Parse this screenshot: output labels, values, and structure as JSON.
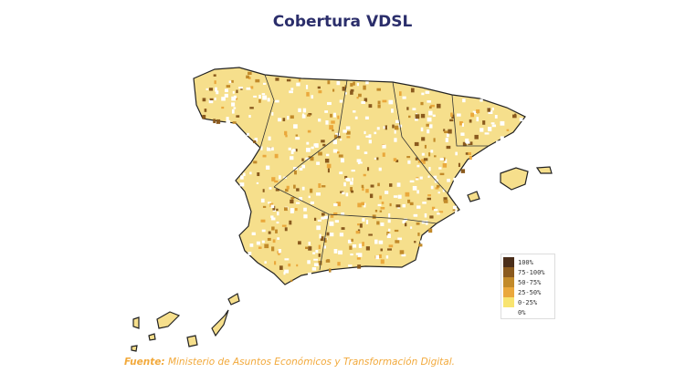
{
  "title": "Cobertura VDSL",
  "legend": [
    {
      "label": "100%",
      "color": "#4a2e1a"
    },
    {
      "label": "75-100%",
      "color": "#8a5a1e"
    },
    {
      "label": "50-75%",
      "color": "#c28a2a"
    },
    {
      "label": "25-50%",
      "color": "#eaa83c"
    },
    {
      "label": "0-25%",
      "color": "#f8e470"
    },
    {
      "label": "0%",
      "color": "#ffffff"
    }
  ],
  "source": {
    "label": "Fuente:",
    "text": "Ministerio de Asuntos Económicos y Transformación Digital."
  },
  "base_color": "#f6df8c"
}
